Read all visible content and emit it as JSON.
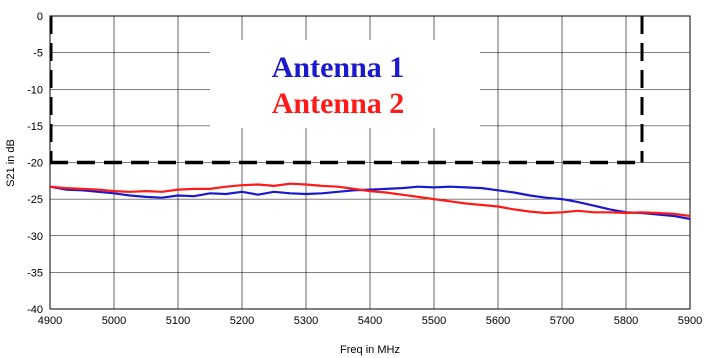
{
  "chart_data": {
    "type": "line",
    "title": "",
    "xlabel": "Freq in MHz",
    "ylabel": "S21 in dB",
    "xlim": [
      4900,
      5900
    ],
    "ylim": [
      -40,
      0
    ],
    "x_ticks": [
      "4900",
      "5000",
      "5100",
      "5200",
      "5300",
      "5400",
      "5500",
      "5600",
      "5700",
      "5800",
      "5900"
    ],
    "y_ticks": [
      "0",
      "-5",
      "-10",
      "-15",
      "-20",
      "-25",
      "-30",
      "-35",
      "-40"
    ],
    "grid": true,
    "legend_placement": "top-center",
    "series": [
      {
        "name": "Antenna 1",
        "color": "#1a1acc",
        "x": [
          4900,
          4925,
          4950,
          4975,
          5000,
          5025,
          5050,
          5075,
          5100,
          5125,
          5150,
          5175,
          5200,
          5225,
          5250,
          5275,
          5300,
          5325,
          5350,
          5375,
          5400,
          5425,
          5450,
          5475,
          5500,
          5525,
          5550,
          5575,
          5600,
          5625,
          5650,
          5675,
          5700,
          5725,
          5750,
          5775,
          5800,
          5825,
          5850,
          5875,
          5900
        ],
        "y": [
          -23.3,
          -23.7,
          -23.8,
          -24.0,
          -24.2,
          -24.5,
          -24.7,
          -24.8,
          -24.5,
          -24.6,
          -24.2,
          -24.3,
          -24.0,
          -24.4,
          -24.0,
          -24.2,
          -24.3,
          -24.2,
          -24.0,
          -23.8,
          -23.7,
          -23.6,
          -23.5,
          -23.3,
          -23.4,
          -23.3,
          -23.4,
          -23.5,
          -23.8,
          -24.1,
          -24.5,
          -24.8,
          -25.0,
          -25.4,
          -25.9,
          -26.4,
          -26.8,
          -26.9,
          -27.1,
          -27.3,
          -27.7
        ]
      },
      {
        "name": "Antenna 2",
        "color": "#ff1a1a",
        "x": [
          4900,
          4925,
          4950,
          4975,
          5000,
          5025,
          5050,
          5075,
          5100,
          5125,
          5150,
          5175,
          5200,
          5225,
          5250,
          5275,
          5300,
          5325,
          5350,
          5375,
          5400,
          5425,
          5450,
          5475,
          5500,
          5525,
          5550,
          5575,
          5600,
          5625,
          5650,
          5675,
          5700,
          5725,
          5750,
          5775,
          5800,
          5825,
          5850,
          5875,
          5900
        ],
        "y": [
          -23.3,
          -23.5,
          -23.6,
          -23.7,
          -23.9,
          -24.0,
          -23.9,
          -24.0,
          -23.7,
          -23.6,
          -23.6,
          -23.3,
          -23.1,
          -23.0,
          -23.2,
          -22.9,
          -23.0,
          -23.2,
          -23.3,
          -23.6,
          -23.9,
          -24.1,
          -24.4,
          -24.7,
          -25.0,
          -25.3,
          -25.6,
          -25.8,
          -26.0,
          -26.4,
          -26.7,
          -26.9,
          -26.8,
          -26.6,
          -26.8,
          -26.8,
          -26.9,
          -26.8,
          -26.9,
          -27.0,
          -27.3
        ]
      }
    ],
    "annotations": {
      "dashed_box": {
        "color": "#000000",
        "x_right": 5825,
        "y_bottom": -20
      }
    }
  }
}
